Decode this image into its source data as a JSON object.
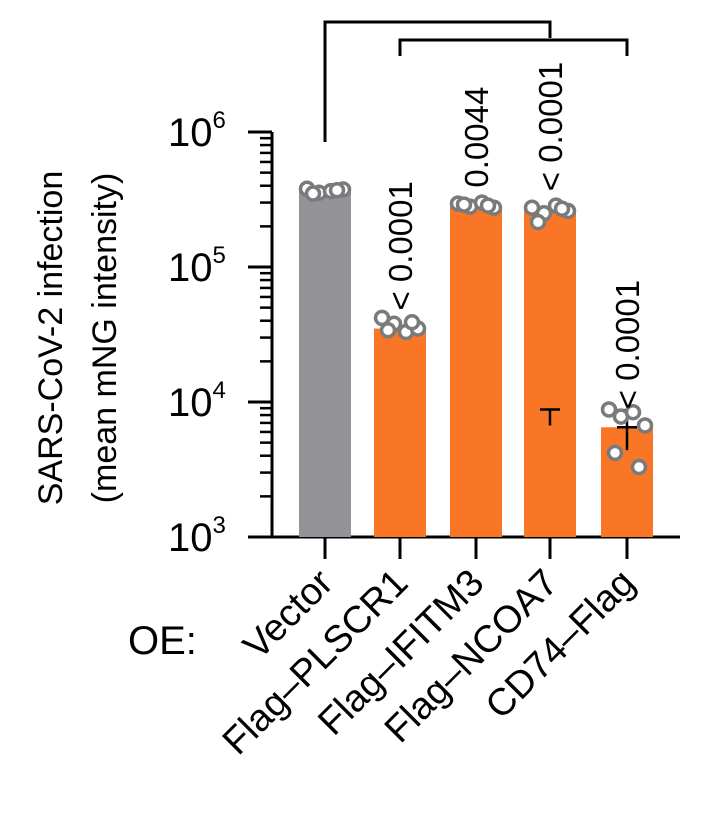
{
  "chart_data": {
    "type": "bar",
    "yscale": "log",
    "ylim": [
      1000,
      1000000
    ],
    "ylabel_line1": "SARS-CoV-2 infection",
    "ylabel_line2": "(mean mNG intensity)",
    "yticks": [
      {
        "base": "10",
        "exp": "3",
        "value": 1000
      },
      {
        "base": "10",
        "exp": "4",
        "value": 10000
      },
      {
        "base": "10",
        "exp": "5",
        "value": 100000
      },
      {
        "base": "10",
        "exp": "6",
        "value": 1000000
      }
    ],
    "x_prefix": "OE:",
    "categories": [
      "Vector",
      "Flag–PLSCR1",
      "Flag–IFITM3",
      "Flag–NCOA7",
      "CD74–Flag"
    ],
    "values": [
      365000,
      35000,
      285000,
      268000,
      6500
    ],
    "points": [
      [
        380000,
        355000,
        365000,
        375000,
        350000,
        370000
      ],
      [
        42000,
        38000,
        33000,
        35000,
        34000,
        39000
      ],
      [
        295000,
        280000,
        300000,
        275000,
        290000,
        285000
      ],
      [
        275000,
        250000,
        285000,
        260000,
        215000,
        270000
      ],
      [
        8800,
        7800,
        8400,
        6700,
        4200,
        3300
      ]
    ],
    "errors": [
      null,
      null,
      null,
      [
        6700,
        8800
      ],
      [
        4400,
        8700
      ]
    ],
    "pvalues": [
      "",
      "< 0.0001",
      "0.0044",
      "< 0.0001",
      "< 0.0001"
    ],
    "colors": [
      "#949398",
      "#F97627",
      "#F97627",
      "#F97627",
      "#F97627"
    ],
    "point_color": "#7a7a7a",
    "comparison_brackets": [
      {
        "from": "Vector",
        "to": "Flag–NCOA7"
      },
      {
        "from": "Flag–PLSCR1",
        "to": "CD74–Flag"
      }
    ]
  }
}
